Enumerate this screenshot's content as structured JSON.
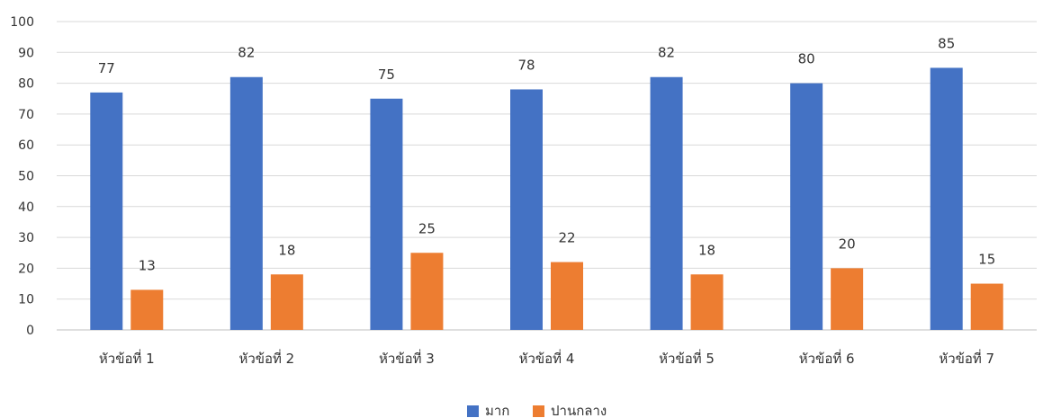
{
  "chart_data": {
    "type": "bar",
    "categories": [
      "หัวข้อที่ 1",
      "หัวข้อที่ 2",
      "หัวข้อที่ 3",
      "หัวข้อที่ 4",
      "หัวข้อที่ 5",
      "หัวข้อที่ 6",
      "หัวข้อที่ 7"
    ],
    "series": [
      {
        "name": "มาก",
        "color": "#4472C4",
        "values": [
          77,
          82,
          75,
          78,
          82,
          80,
          85
        ]
      },
      {
        "name": "ปานกลาง",
        "color": "#ED7D31",
        "values": [
          13,
          18,
          25,
          22,
          18,
          20,
          15
        ]
      }
    ],
    "ylim": [
      0,
      100
    ],
    "yticks": [
      0,
      10,
      20,
      30,
      40,
      50,
      60,
      70,
      80,
      90,
      100
    ],
    "grid": true,
    "legend": "bottom-center",
    "data_labels": true
  }
}
